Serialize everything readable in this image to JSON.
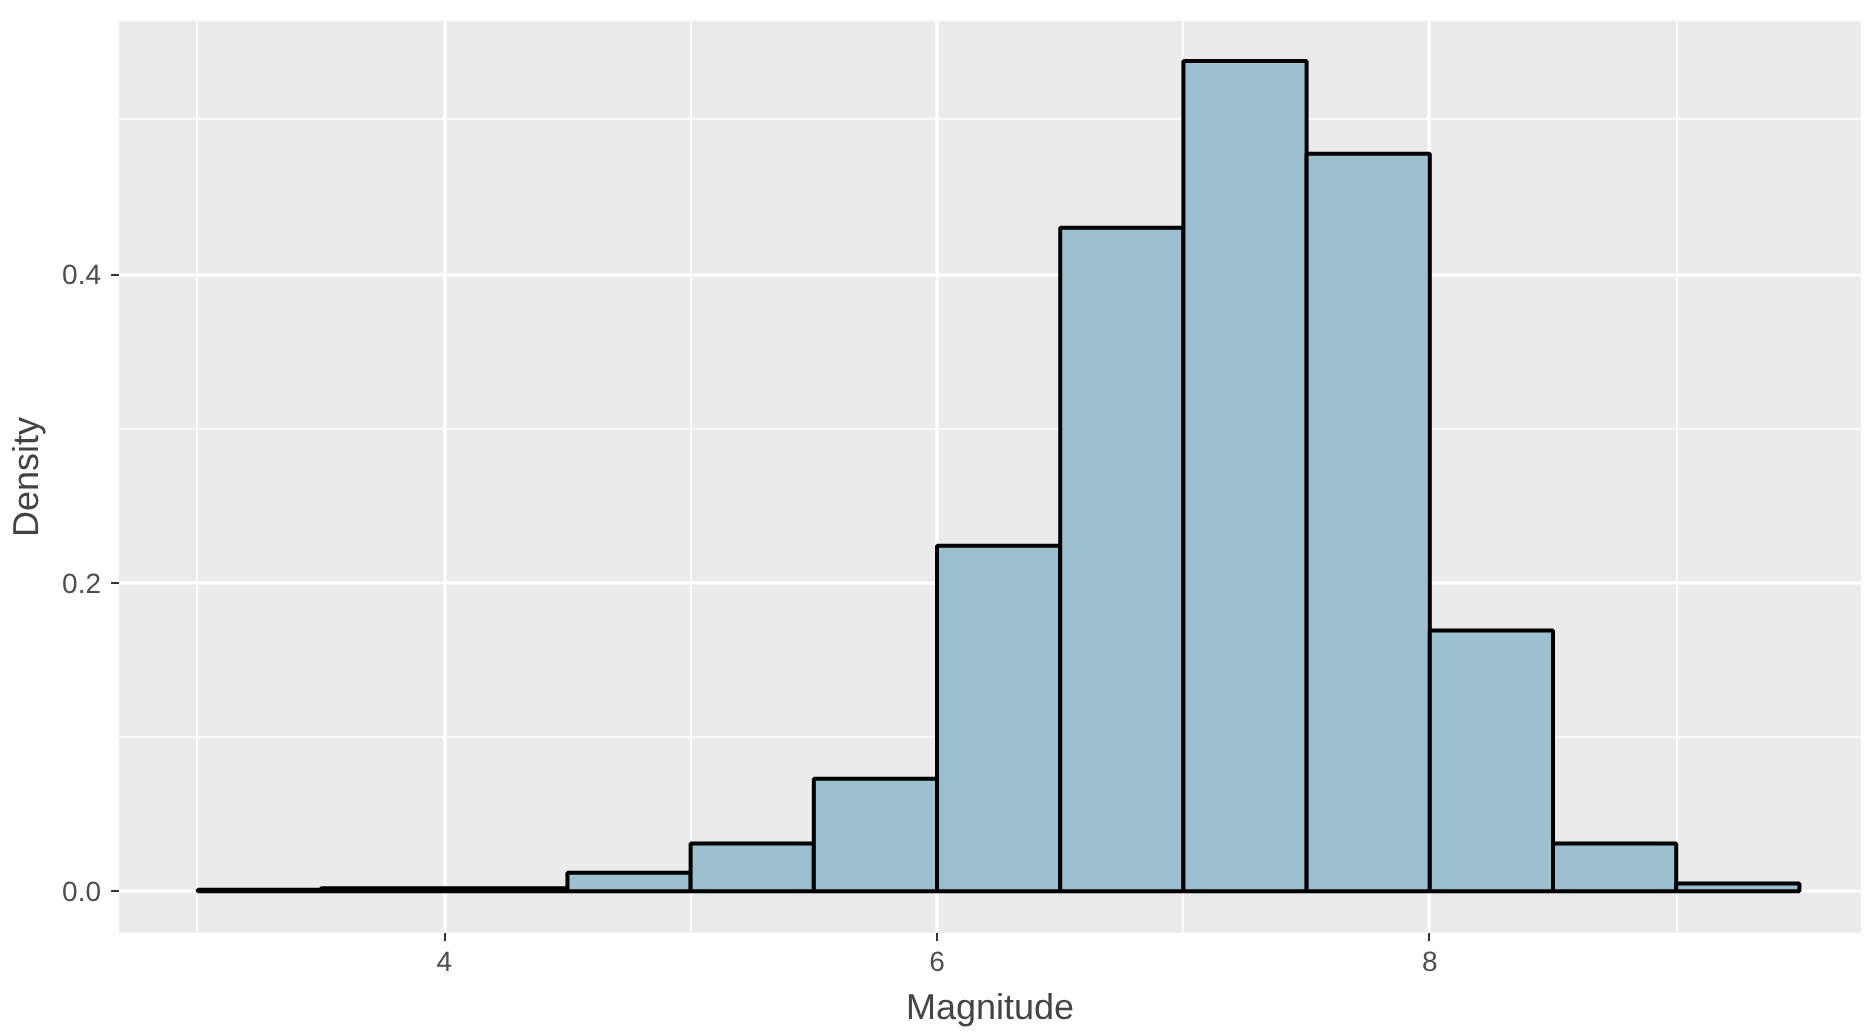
{
  "chart_data": {
    "type": "histogram",
    "xlabel": "Magnitude",
    "ylabel": "Density",
    "bins": [
      3,
      3.5,
      4,
      4.5,
      5,
      5.5,
      6,
      6.5,
      7,
      7.5,
      8,
      8.5,
      9,
      9.5
    ],
    "values": [
      0.001,
      0.002,
      0.002,
      0.012,
      0.031,
      0.073,
      0.224,
      0.43,
      0.538,
      0.478,
      0.169,
      0.031,
      0.005
    ],
    "color": "#9bc0d0",
    "xlim": [
      2.68,
      9.75
    ],
    "ylim": [
      -0.027,
      0.564
    ],
    "xticks": [
      4,
      6,
      8
    ],
    "yticks": [
      {
        "value": 0,
        "label": "0.0"
      },
      {
        "value": 0.2,
        "label": "0.2"
      },
      {
        "value": 0.4,
        "label": "0.4"
      }
    ],
    "grid": true
  }
}
